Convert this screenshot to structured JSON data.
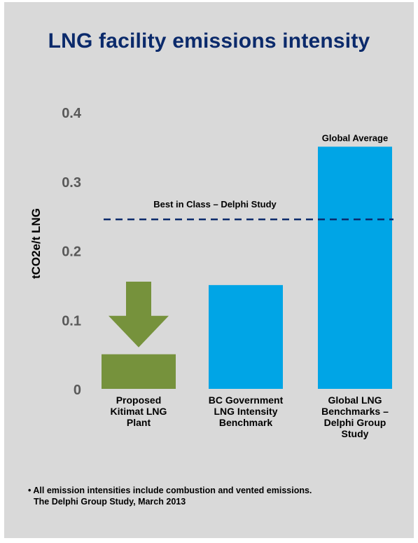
{
  "title": "LNG facility emissions intensity",
  "colors": {
    "panel": "#d9d9d9",
    "title": "#0b2a6b",
    "proposed_bar": "#76923c",
    "benchmark_bar": "#00a5e6",
    "reference_line": "#0b2a6b"
  },
  "chart_data": {
    "type": "bar",
    "categories": [
      [
        "Proposed",
        "Kitimat LNG",
        "Plant"
      ],
      [
        "BC Government",
        "LNG Intensity",
        "Benchmark"
      ],
      [
        "Global LNG",
        "Benchmarks –",
        "Delphi Group",
        "Study"
      ]
    ],
    "values": [
      0.05,
      0.15,
      0.35
    ],
    "bar_colors": [
      "#76923c",
      "#00a5e6",
      "#00a5e6"
    ],
    "ylabel": "tCO2e/t LNG",
    "ylim": [
      0,
      0.4
    ],
    "yticks": [
      0,
      0.1,
      0.2,
      0.3,
      0.4
    ],
    "ytick_labels": [
      "0",
      "0.1",
      "0.2",
      "0.3",
      "0.4"
    ],
    "reference_line": {
      "value": 0.245,
      "label": "Best in Class – Delphi Study",
      "style": "dashed"
    },
    "bar_annotations": [
      {
        "bar_index": 2,
        "text": "Global Average"
      }
    ],
    "arrow": {
      "bar_index": 0,
      "direction": "down",
      "from_value": 0.155,
      "to_value": 0.06,
      "color": "#76923c"
    },
    "grid": false,
    "legend": "none"
  },
  "footnote": {
    "line1": "• All emission intensities include combustion  and vented emissions.",
    "line2": "The Delphi Group Study, March 2013"
  }
}
